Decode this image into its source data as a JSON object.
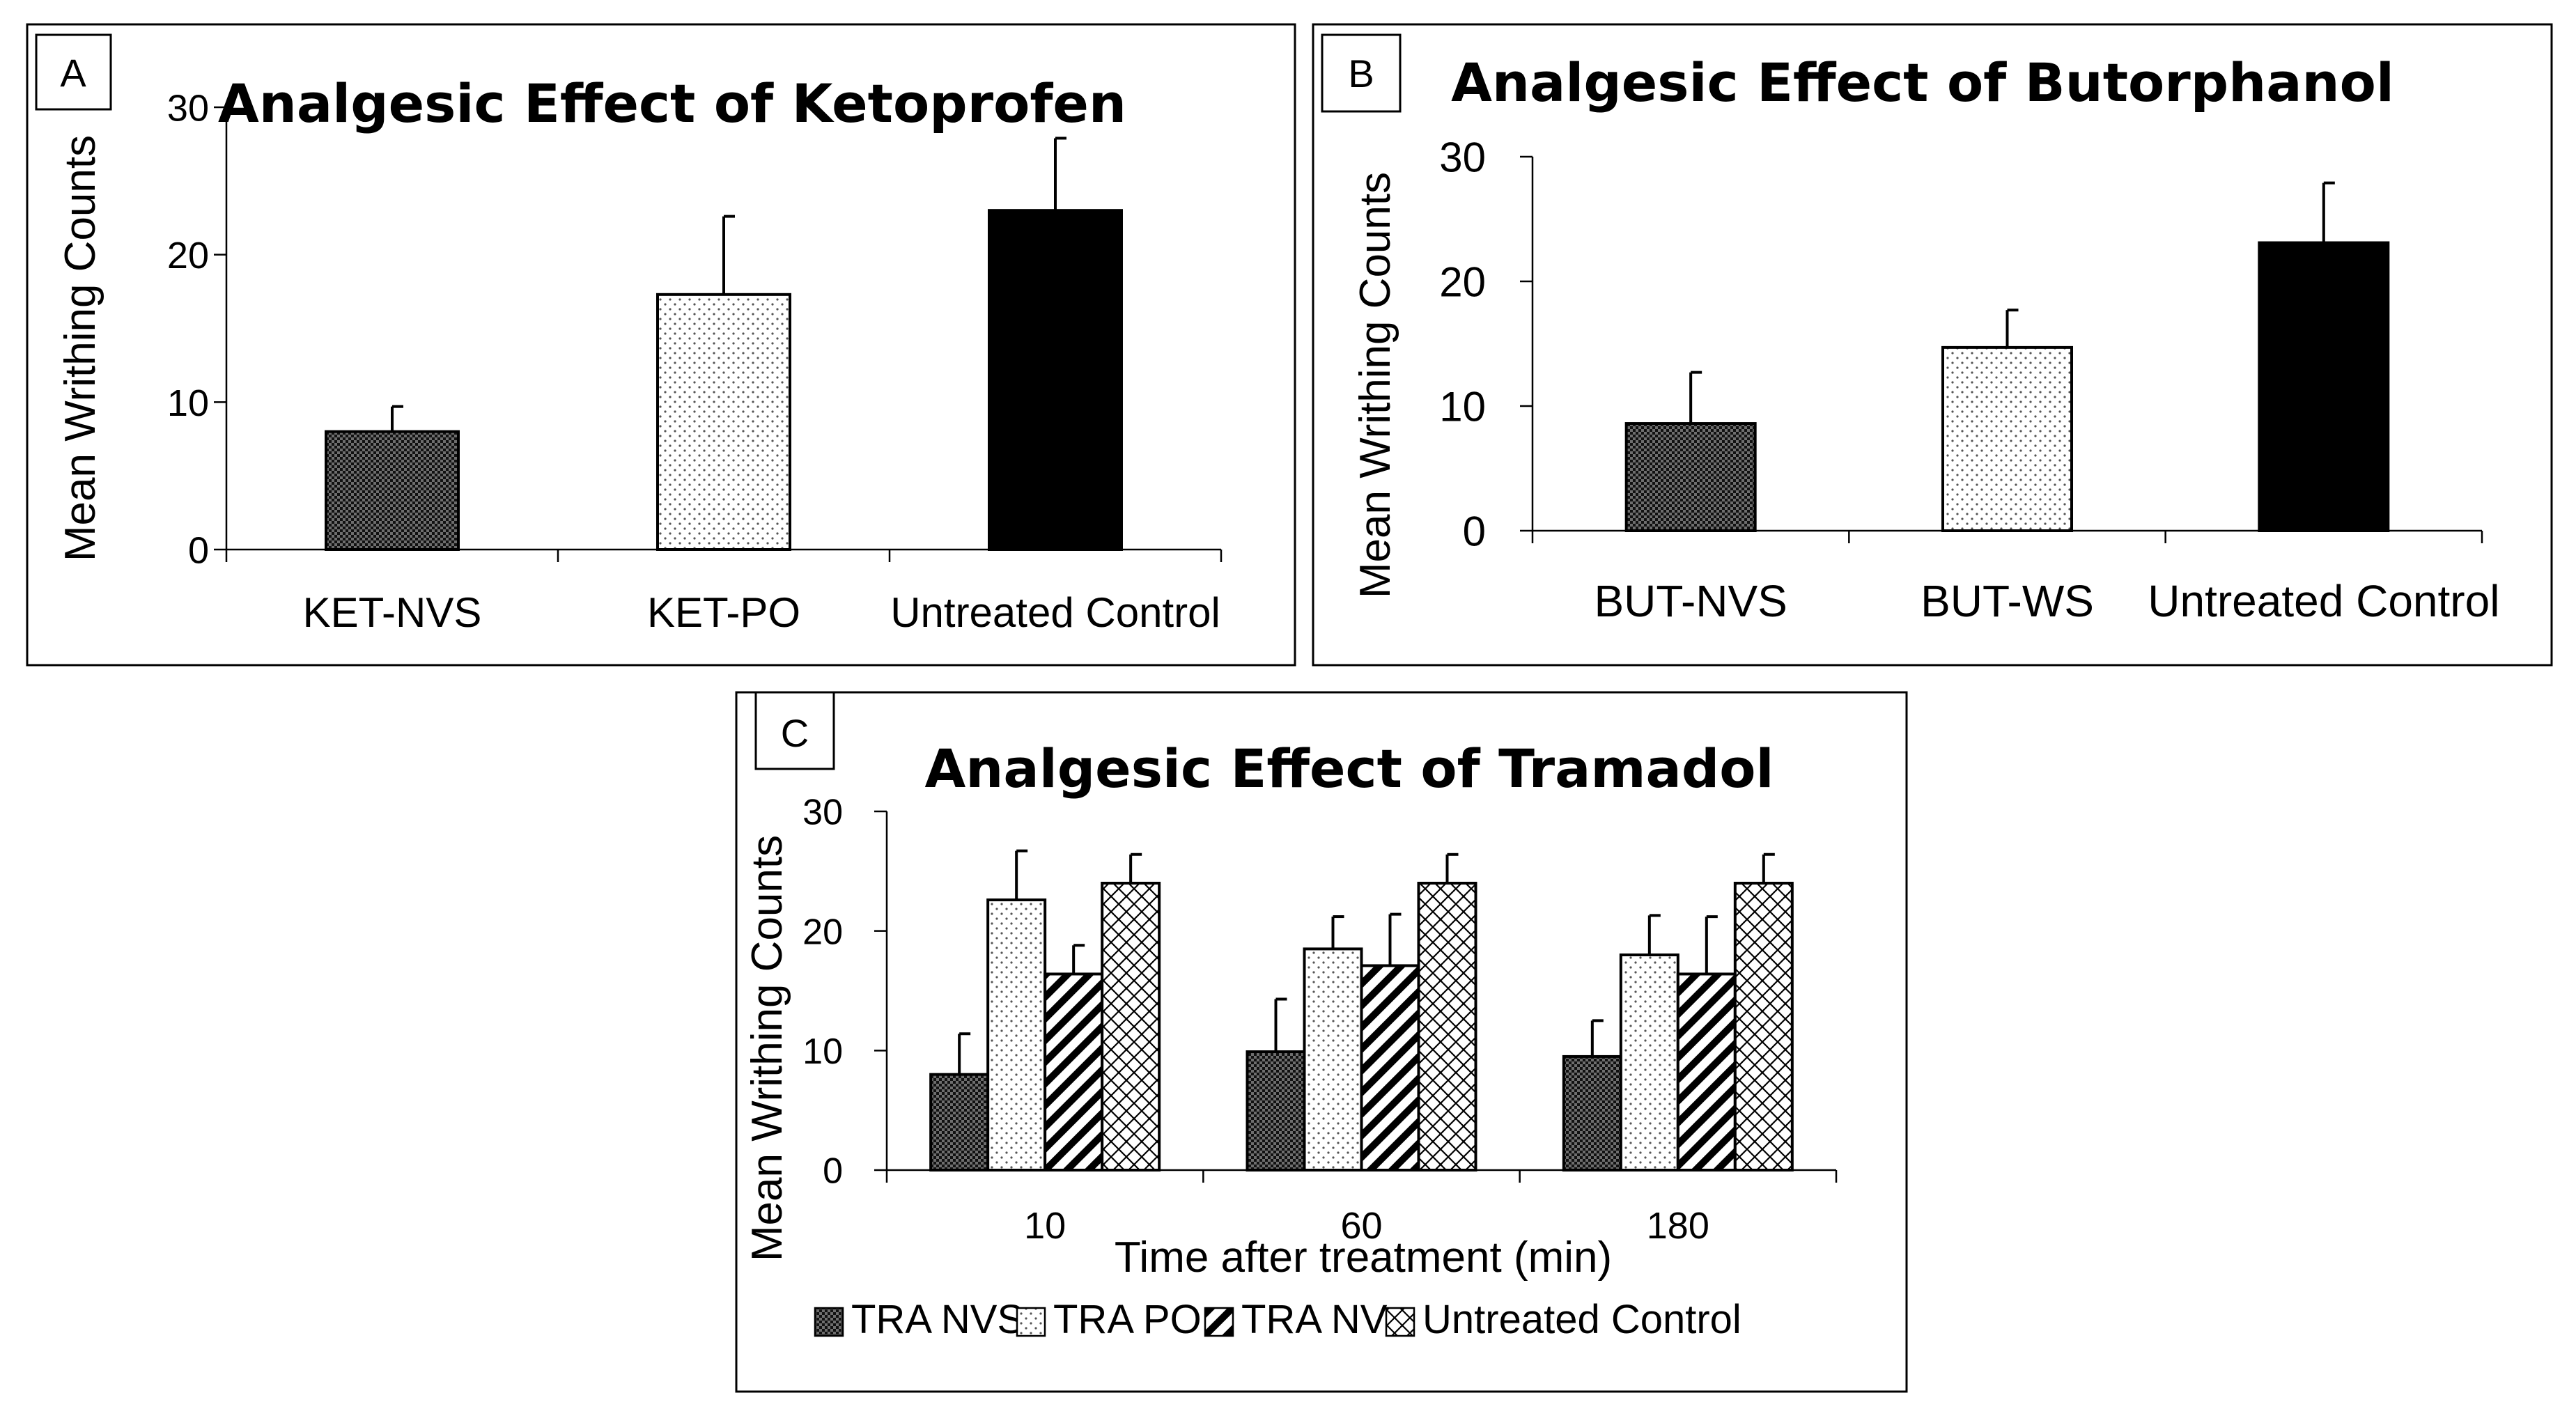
{
  "chart_data": [
    {
      "panel": "A",
      "type": "bar",
      "title": "Analgesic Effect of Ketoprofen",
      "ylabel": "Mean Writhing Counts",
      "xlabel": "",
      "ylim": [
        0,
        30
      ],
      "yticks": [
        "0",
        "10",
        "20",
        "30"
      ],
      "categories": [
        "KET-NVS",
        "KET-PO",
        "Untreated Control"
      ],
      "values": [
        8.0,
        17.3,
        23.0
      ],
      "errors": [
        1.7,
        5.3,
        4.9
      ],
      "patterns": [
        "dense",
        "dots",
        "solid"
      ]
    },
    {
      "panel": "B",
      "type": "bar",
      "title": "Analgesic Effect of Butorphanol",
      "ylabel": "Mean Writhing  Counts",
      "xlabel": "",
      "ylim": [
        0,
        30
      ],
      "yticks": [
        "0",
        "10",
        "20",
        "30"
      ],
      "categories": [
        "BUT-NVS",
        "BUT-WS",
        "Untreated Control"
      ],
      "values": [
        8.6,
        14.7,
        23.1
      ],
      "errors": [
        4.1,
        3.0,
        4.8
      ],
      "patterns": [
        "dense",
        "dots",
        "solid"
      ]
    },
    {
      "panel": "C",
      "type": "bar",
      "title": "Analgesic Effect of Tramadol",
      "ylabel": "Mean Writhing Counts",
      "xlabel": "Time after treatment (min)",
      "ylim": [
        0,
        30
      ],
      "yticks": [
        "0",
        "10",
        "20",
        "30"
      ],
      "categories": [
        "10",
        "60",
        "180"
      ],
      "legend": "bottom",
      "series": [
        {
          "name": "TRA NVS",
          "pattern": "dense",
          "values": [
            8.0,
            9.9,
            9.5
          ],
          "errors": [
            3.4,
            4.4,
            3.0
          ]
        },
        {
          "name": "TRA PO",
          "pattern": "dots",
          "values": [
            22.6,
            18.5,
            18.0
          ],
          "errors": [
            4.1,
            2.7,
            3.3
          ]
        },
        {
          "name": "TRA NV",
          "pattern": "diag",
          "values": [
            16.4,
            17.1,
            16.4
          ],
          "errors": [
            2.4,
            4.3,
            4.8
          ]
        },
        {
          "name": "Untreated Control",
          "pattern": "cross",
          "values": [
            24.0,
            24.0,
            24.0
          ],
          "errors": [
            2.4,
            2.4,
            2.4
          ]
        }
      ]
    }
  ]
}
